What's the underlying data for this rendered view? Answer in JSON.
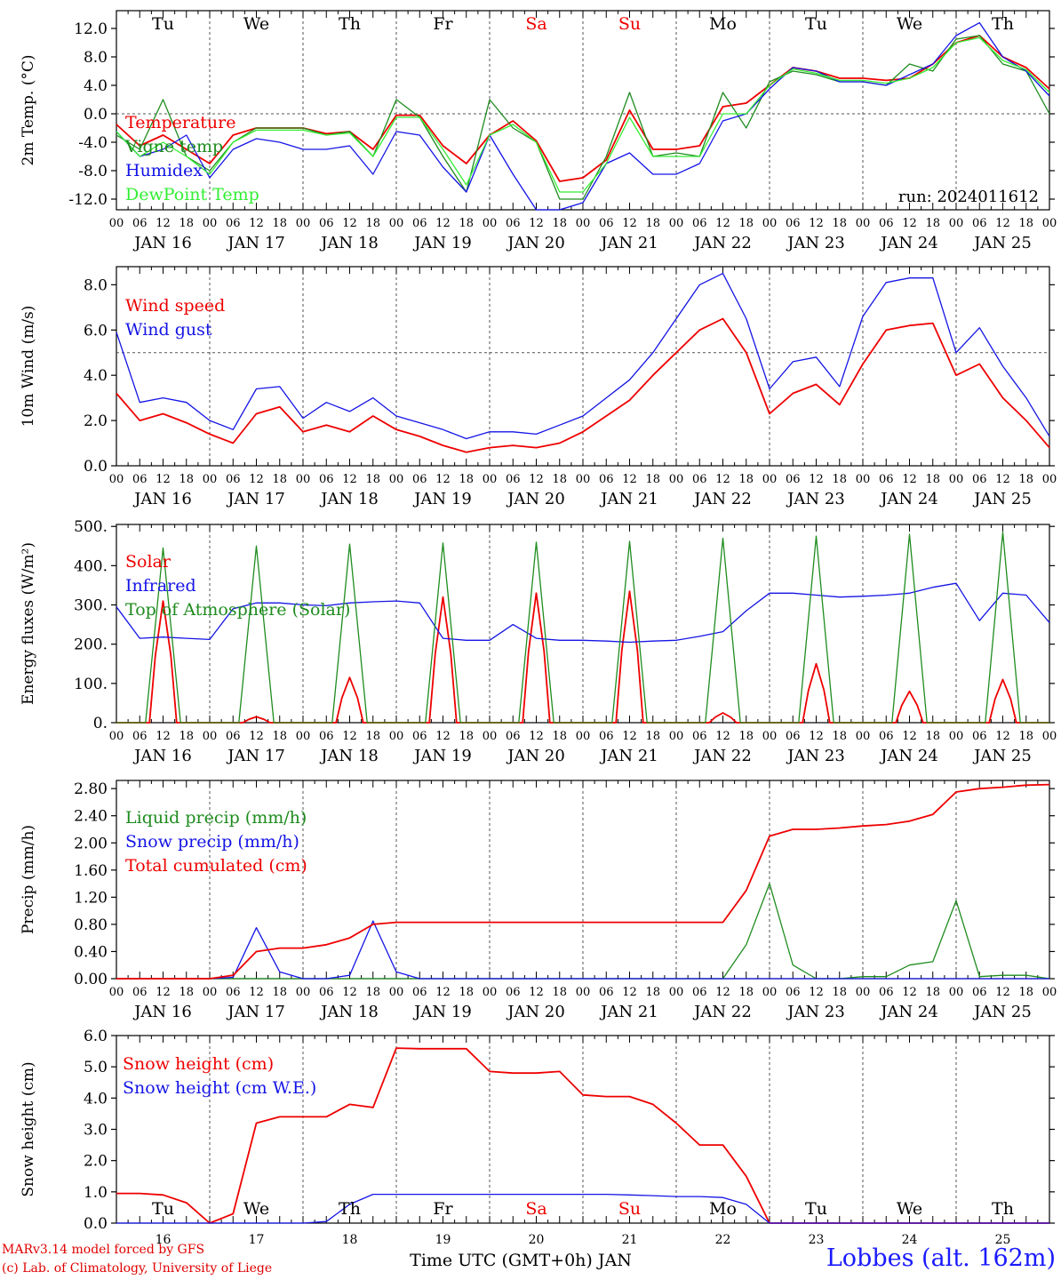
{
  "colors": {
    "red": "#ee0000",
    "blue": "#1414e6",
    "green": "#1e8c1e",
    "lime": "#33ee33",
    "grid": "#555555",
    "axis": "#000000",
    "weekend": "#ee0000"
  },
  "days": {
    "top": [
      "Tu",
      "We",
      "Th",
      "Fr",
      "Sa",
      "Su",
      "Mo",
      "Tu",
      "We",
      "Th"
    ],
    "weekend": [
      false,
      false,
      false,
      false,
      true,
      true,
      false,
      false,
      false,
      false
    ],
    "dates": [
      "JAN 16",
      "JAN 17",
      "JAN 18",
      "JAN 19",
      "JAN 20",
      "JAN 21",
      "JAN 22",
      "JAN 23",
      "JAN 24",
      "JAN 25"
    ],
    "numbers": [
      "16",
      "17",
      "18",
      "19",
      "20",
      "21",
      "22",
      "23",
      "24",
      "25"
    ],
    "hour_labels": [
      "00",
      "06",
      "12",
      "18"
    ],
    "final_hour": "00"
  },
  "chart_data": [
    {
      "type": "line",
      "ylabel": "2m Temp. (°C)",
      "ylim": [
        -13.5,
        14.5
      ],
      "yticks": [
        "12.0",
        "8.0",
        "4.0",
        "0.0",
        "-4.0",
        "-8.0",
        "-12.0"
      ],
      "ytick_values": [
        12,
        8,
        4,
        0,
        -4,
        -8,
        -12
      ],
      "ref_line": 0,
      "annotation": "run: 2024011612",
      "x": [
        0,
        6,
        12,
        18,
        24,
        30,
        36,
        42,
        48,
        54,
        60,
        66,
        72,
        78,
        84,
        90,
        96,
        102,
        108,
        114,
        120,
        126,
        132,
        138,
        144,
        150,
        156,
        162,
        168,
        174,
        180,
        186,
        192,
        198,
        204,
        210,
        216,
        222,
        228,
        234,
        240
      ],
      "series": [
        {
          "name": "Temperature",
          "color": "red",
          "values": [
            -1.5,
            -4.5,
            -3,
            -5,
            -7,
            -3,
            -2,
            -2,
            -2,
            -2.8,
            -2.5,
            -5,
            -0.2,
            -0.2,
            -4.5,
            -7,
            -3,
            -1,
            -3.8,
            -9.5,
            -9,
            -6.5,
            0.5,
            -5,
            -5,
            -4.5,
            1,
            1.5,
            4,
            6.5,
            6,
            5,
            5,
            4.7,
            5,
            7,
            10,
            11,
            8,
            6.5,
            3.5
          ]
        },
        {
          "name": "Vigne temp",
          "color": "green",
          "values": [
            -3,
            -5,
            2,
            -6,
            -8,
            -4,
            -2,
            -2,
            -2,
            -3,
            -2.5,
            -6,
            2,
            -0.5,
            -6,
            -11,
            2,
            -2,
            -4,
            -12,
            -12,
            -6,
            3,
            -6,
            -5.5,
            -6,
            3,
            -2,
            4.5,
            6,
            5.5,
            4.5,
            4.5,
            4,
            7,
            6,
            10.5,
            11,
            7,
            6,
            0
          ]
        },
        {
          "name": "Humidex",
          "color": "blue",
          "values": [
            -2.5,
            -6,
            -5,
            -3,
            -9,
            -5,
            -3.5,
            -4,
            -5,
            -5,
            -4.5,
            -8.5,
            -2.5,
            -3,
            -7.5,
            -11,
            -3,
            -8.5,
            -13.5,
            -13.5,
            -12.5,
            -7,
            -5.5,
            -8.5,
            -8.5,
            -7,
            -1,
            0,
            3.5,
            6.5,
            6,
            4.5,
            4.5,
            4,
            5.5,
            7,
            11,
            12.8,
            8,
            6,
            2.5
          ]
        },
        {
          "name": "DewPoint Temp",
          "color": "lime",
          "values": [
            -2.5,
            -6,
            -4,
            -6,
            -8.5,
            -4,
            -2.3,
            -2.3,
            -2.3,
            -3,
            -2.7,
            -6,
            -0.5,
            -0.5,
            -5,
            -10,
            -3,
            -1.5,
            -4,
            -11,
            -11,
            -7,
            -0.5,
            -6,
            -6,
            -6,
            0,
            0,
            4,
            6.3,
            5.7,
            4.7,
            4.7,
            4.3,
            5,
            6.5,
            10,
            10.7,
            7.5,
            6.2,
            3
          ]
        }
      ]
    },
    {
      "type": "line",
      "ylabel": "10m Wind (m/s)",
      "ylim": [
        0,
        8.8
      ],
      "yticks": [
        "8.0",
        "6.0",
        "4.0",
        "2.0",
        "0.0"
      ],
      "ytick_values": [
        8,
        6,
        4,
        2,
        0
      ],
      "ref_line": 5,
      "x": [
        0,
        6,
        12,
        18,
        24,
        30,
        36,
        42,
        48,
        54,
        60,
        66,
        72,
        78,
        84,
        90,
        96,
        102,
        108,
        114,
        120,
        126,
        132,
        138,
        144,
        150,
        156,
        162,
        168,
        174,
        180,
        186,
        192,
        198,
        204,
        210,
        216,
        222,
        228,
        234,
        240
      ],
      "series": [
        {
          "name": "Wind speed",
          "color": "red",
          "values": [
            3.2,
            2,
            2.3,
            1.9,
            1.4,
            1,
            2.3,
            2.6,
            1.5,
            1.8,
            1.5,
            2.2,
            1.6,
            1.3,
            0.9,
            0.6,
            0.8,
            0.9,
            0.8,
            1,
            1.5,
            2.2,
            2.9,
            4,
            5,
            6,
            6.5,
            5,
            2.3,
            3.2,
            3.6,
            2.7,
            4.5,
            6,
            6.2,
            6.3,
            4,
            4.5,
            3,
            2,
            0.8
          ]
        },
        {
          "name": "Wind gust",
          "color": "blue",
          "values": [
            5.9,
            2.8,
            3,
            2.8,
            2,
            1.6,
            3.4,
            3.5,
            2.1,
            2.8,
            2.4,
            3,
            2.2,
            1.9,
            1.6,
            1.2,
            1.5,
            1.5,
            1.4,
            1.8,
            2.2,
            3,
            3.8,
            5,
            6.5,
            8,
            8.5,
            6.5,
            3.4,
            4.6,
            4.8,
            3.5,
            6.6,
            8.1,
            8.3,
            8.3,
            5,
            6.1,
            4.4,
            3,
            1.3
          ]
        }
      ]
    },
    {
      "type": "line",
      "ylabel": "Energy fluxes (W/m²)",
      "ylim": [
        0,
        505
      ],
      "yticks": [
        "500.",
        "400.",
        "300.",
        "200.",
        "100.",
        "0."
      ],
      "ytick_values": [
        500,
        400,
        300,
        200,
        100,
        0
      ],
      "series": [
        {
          "name": "Solar",
          "color": "red",
          "peaks": [
            310,
            15,
            115,
            320,
            330,
            335,
            25,
            150,
            80,
            110
          ]
        },
        {
          "name": "Infrared",
          "color": "blue",
          "x": [
            0,
            6,
            12,
            18,
            24,
            30,
            36,
            42,
            48,
            54,
            60,
            66,
            72,
            78,
            84,
            90,
            96,
            102,
            108,
            114,
            120,
            126,
            132,
            138,
            144,
            150,
            156,
            162,
            168,
            174,
            180,
            186,
            192,
            198,
            204,
            210,
            216,
            222,
            228,
            234,
            240
          ],
          "values": [
            295,
            215,
            218,
            215,
            212,
            290,
            305,
            305,
            300,
            298,
            305,
            308,
            310,
            305,
            215,
            210,
            210,
            250,
            215,
            210,
            210,
            208,
            205,
            208,
            210,
            220,
            232,
            285,
            330,
            330,
            325,
            320,
            322,
            325,
            330,
            345,
            355,
            260,
            330,
            325,
            255
          ]
        },
        {
          "name": "Top of Atmosphere (Solar)",
          "color": "green",
          "peaks": [
            445,
            450,
            455,
            458,
            460,
            462,
            470,
            475,
            480,
            485
          ]
        }
      ]
    },
    {
      "type": "line",
      "ylabel": "Precip (mm/h)",
      "ylim": [
        0,
        2.92
      ],
      "yticks": [
        "2.80",
        "2.40",
        "2.00",
        "1.60",
        "1.20",
        "0.80",
        "0.40",
        "0.00"
      ],
      "ytick_values": [
        2.8,
        2.4,
        2,
        1.6,
        1.2,
        0.8,
        0.4,
        0
      ],
      "series": [
        {
          "name": "Liquid precip (mm/h)",
          "color": "green",
          "x": [
            0,
            6,
            12,
            18,
            24,
            30,
            36,
            42,
            48,
            54,
            60,
            66,
            72,
            78,
            84,
            90,
            96,
            102,
            108,
            114,
            120,
            126,
            132,
            138,
            144,
            150,
            156,
            162,
            168,
            174,
            180,
            186,
            192,
            198,
            204,
            210,
            216,
            222,
            228,
            234,
            240
          ],
          "values": [
            0,
            0,
            0,
            0,
            0,
            0,
            0,
            0,
            0,
            0,
            0,
            0,
            0,
            0,
            0,
            0,
            0,
            0,
            0,
            0,
            0,
            0,
            0,
            0,
            0,
            0,
            0,
            0.5,
            1.4,
            0.2,
            0,
            0,
            0.03,
            0.03,
            0.2,
            0.25,
            1.15,
            0.03,
            0.05,
            0.05,
            0
          ]
        },
        {
          "name": "Snow precip (mm/h)",
          "color": "blue",
          "x": [
            0,
            6,
            12,
            18,
            24,
            30,
            36,
            42,
            48,
            54,
            60,
            66,
            72,
            78,
            84,
            90,
            96,
            102,
            108,
            114,
            120,
            126,
            132,
            138,
            144,
            150,
            156,
            162,
            168,
            174,
            180,
            186,
            192,
            198,
            204,
            210,
            216,
            222,
            228,
            234,
            240
          ],
          "values": [
            0,
            0,
            0,
            0,
            0,
            0.02,
            0.75,
            0.1,
            0,
            0,
            0.05,
            0.85,
            0.1,
            0,
            0,
            0,
            0,
            0,
            0,
            0,
            0,
            0,
            0,
            0,
            0,
            0,
            0,
            0,
            0,
            0,
            0,
            0,
            0,
            0,
            0,
            0,
            0,
            0,
            0,
            0,
            0
          ]
        },
        {
          "name": "Total cumulated (cm)",
          "color": "red",
          "x": [
            0,
            6,
            12,
            18,
            24,
            30,
            36,
            42,
            48,
            54,
            60,
            66,
            72,
            78,
            84,
            90,
            96,
            102,
            108,
            114,
            120,
            126,
            132,
            138,
            144,
            150,
            156,
            162,
            168,
            174,
            180,
            186,
            192,
            198,
            204,
            210,
            216,
            222,
            228,
            234,
            240
          ],
          "values": [
            0,
            0,
            0,
            0,
            0,
            0.05,
            0.4,
            0.45,
            0.45,
            0.5,
            0.6,
            0.8,
            0.83,
            0.83,
            0.83,
            0.83,
            0.83,
            0.83,
            0.83,
            0.83,
            0.83,
            0.83,
            0.83,
            0.83,
            0.83,
            0.83,
            0.83,
            1.3,
            2.1,
            2.2,
            2.2,
            2.22,
            2.25,
            2.27,
            2.32,
            2.42,
            2.75,
            2.8,
            2.82,
            2.85,
            2.86
          ]
        }
      ]
    },
    {
      "type": "line",
      "ylabel": "Snow height (cm)",
      "ylim": [
        0,
        6
      ],
      "yticks": [
        "6.0",
        "5.0",
        "4.0",
        "3.0",
        "2.0",
        "1.0",
        "0.0"
      ],
      "ytick_values": [
        6,
        5,
        4,
        3,
        2,
        1,
        0
      ],
      "xlabel": "Time UTC (GMT+0h) JAN",
      "x": [
        0,
        6,
        12,
        18,
        24,
        30,
        36,
        42,
        48,
        54,
        60,
        66,
        72,
        78,
        84,
        90,
        96,
        102,
        108,
        114,
        120,
        126,
        132,
        138,
        144,
        150,
        156,
        162,
        168,
        174,
        180,
        186,
        192,
        198,
        204,
        210,
        216,
        222,
        228,
        234,
        240
      ],
      "series": [
        {
          "name": "Snow height (cm)",
          "color": "red",
          "values": [
            0.95,
            0.95,
            0.9,
            0.65,
            0,
            0.3,
            3.2,
            3.4,
            3.4,
            3.4,
            3.8,
            3.7,
            5.6,
            5.58,
            5.58,
            5.58,
            4.85,
            4.8,
            4.8,
            4.85,
            4.1,
            4.05,
            4.05,
            3.8,
            3.2,
            2.5,
            2.5,
            1.5,
            0,
            0,
            0,
            0,
            0,
            0,
            0,
            0,
            0,
            0,
            0,
            0,
            0
          ]
        },
        {
          "name": "Snow height (cm W.E.)",
          "color": "blue",
          "values": [
            0,
            0,
            0,
            0,
            0,
            0,
            0,
            0,
            0,
            0.05,
            0.6,
            0.92,
            0.92,
            0.92,
            0.92,
            0.92,
            0.92,
            0.92,
            0.92,
            0.92,
            0.92,
            0.92,
            0.9,
            0.88,
            0.85,
            0.85,
            0.82,
            0.6,
            0,
            0,
            0,
            0,
            0,
            0,
            0,
            0,
            0,
            0,
            0,
            0,
            0
          ]
        }
      ]
    }
  ],
  "footer": {
    "credit1": "MARv3.14 model forced by GFS",
    "credit2": "(c) Lab. of Climatology, University of Liege",
    "place": "Lobbes (alt. 162m)"
  }
}
